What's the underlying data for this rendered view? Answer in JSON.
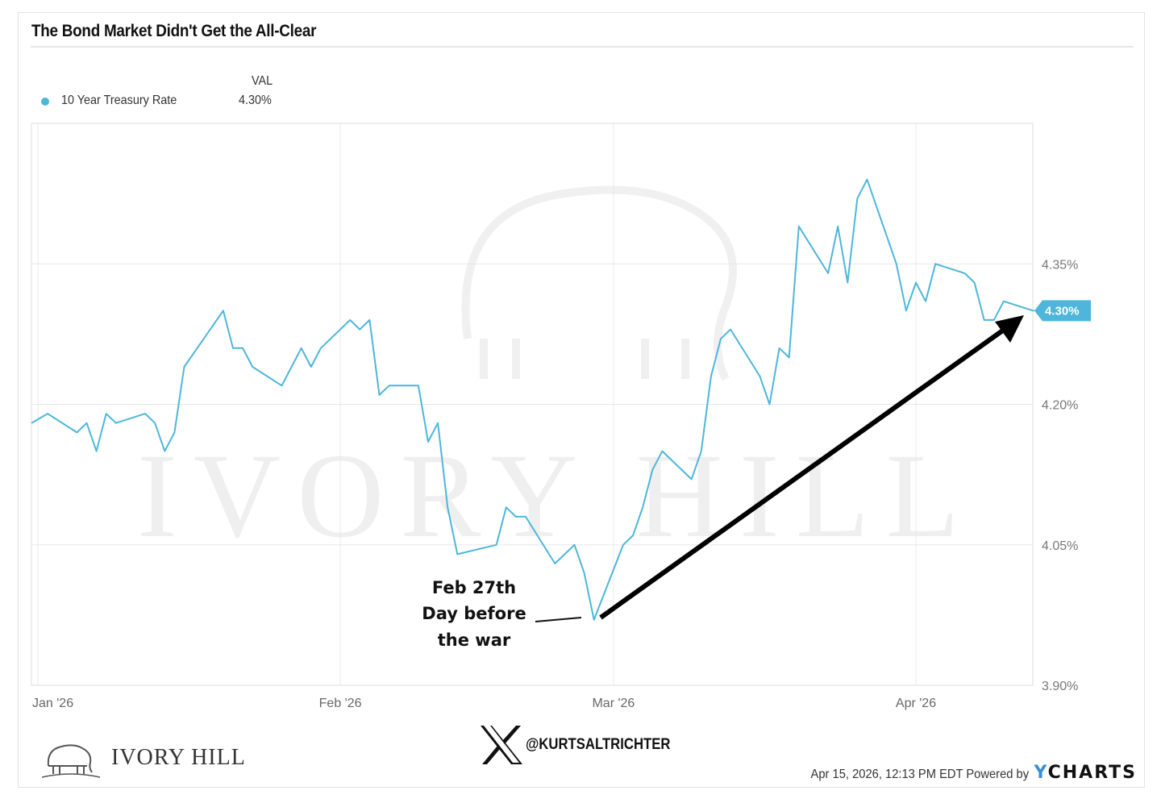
{
  "header": {
    "title": "The Bond Market Didn't Get the All-Clear"
  },
  "legend": {
    "column_header": "VAL",
    "items": [
      {
        "name": "10 Year Treasury Rate",
        "value": "4.30%",
        "color": "#4db6da"
      }
    ]
  },
  "chart_data": {
    "type": "line",
    "title": "The Bond Market Didn't Get the All-Clear",
    "xlabel": "",
    "ylabel": "",
    "ylim": [
      3.9,
      4.5
    ],
    "y_ticks": [
      "3.90%",
      "4.05%",
      "4.20%",
      "4.35%"
    ],
    "y_tick_values": [
      3.9,
      4.05,
      4.2,
      4.35
    ],
    "x_ticks": [
      "Jan '26",
      "Feb '26",
      "Mar '26",
      "Apr '26"
    ],
    "x_tick_dates": [
      "2026-01-01",
      "2026-02-01",
      "2026-03-01",
      "2026-04-01"
    ],
    "grid": true,
    "legend_position": "top-left",
    "last_value_label": "4.30%",
    "series": [
      {
        "name": "10 Year Treasury Rate",
        "color": "#4db6da",
        "x": [
          "2025-12-31",
          "2026-01-02",
          "2026-01-05",
          "2026-01-06",
          "2026-01-07",
          "2026-01-08",
          "2026-01-09",
          "2026-01-12",
          "2026-01-13",
          "2026-01-14",
          "2026-01-15",
          "2026-01-16",
          "2026-01-20",
          "2026-01-21",
          "2026-01-22",
          "2026-01-23",
          "2026-01-26",
          "2026-01-27",
          "2026-01-28",
          "2026-01-29",
          "2026-01-30",
          "2026-02-02",
          "2026-02-03",
          "2026-02-04",
          "2026-02-05",
          "2026-02-06",
          "2026-02-09",
          "2026-02-10",
          "2026-02-11",
          "2026-02-12",
          "2026-02-13",
          "2026-02-17",
          "2026-02-18",
          "2026-02-19",
          "2026-02-20",
          "2026-02-23",
          "2026-02-24",
          "2026-02-25",
          "2026-02-26",
          "2026-02-27",
          "2026-03-02",
          "2026-03-03",
          "2026-03-04",
          "2026-03-05",
          "2026-03-06",
          "2026-03-09",
          "2026-03-10",
          "2026-03-11",
          "2026-03-12",
          "2026-03-13",
          "2026-03-16",
          "2026-03-17",
          "2026-03-18",
          "2026-03-19",
          "2026-03-20",
          "2026-03-23",
          "2026-03-24",
          "2026-03-25",
          "2026-03-26",
          "2026-03-27",
          "2026-03-30",
          "2026-03-31",
          "2026-04-01",
          "2026-04-02",
          "2026-04-03",
          "2026-04-06",
          "2026-04-07",
          "2026-04-08",
          "2026-04-09",
          "2026-04-10",
          "2026-04-13"
        ],
        "values": [
          4.18,
          4.19,
          4.17,
          4.18,
          4.15,
          4.19,
          4.18,
          4.19,
          4.18,
          4.15,
          4.17,
          4.24,
          4.3,
          4.26,
          4.26,
          4.24,
          4.22,
          4.24,
          4.26,
          4.24,
          4.26,
          4.29,
          4.28,
          4.29,
          4.21,
          4.22,
          4.22,
          4.16,
          4.18,
          4.09,
          4.04,
          4.05,
          4.09,
          4.08,
          4.08,
          4.03,
          4.04,
          4.05,
          4.02,
          3.97,
          4.05,
          4.06,
          4.09,
          4.13,
          4.15,
          4.12,
          4.15,
          4.23,
          4.27,
          4.28,
          4.23,
          4.2,
          4.26,
          4.25,
          4.39,
          4.34,
          4.39,
          4.33,
          4.42,
          4.44,
          4.35,
          4.3,
          4.33,
          4.31,
          4.35,
          4.34,
          4.33,
          4.29,
          4.29,
          4.31,
          4.3
        ]
      }
    ],
    "annotations": [
      {
        "lines": [
          "Feb 27th",
          "Day before",
          "the war"
        ],
        "date": "2026-02-27"
      }
    ]
  },
  "watermark": {
    "text": "IVORY HILL"
  },
  "footer": {
    "brand": "IVORY HILL",
    "social_icon": "x-logo-icon",
    "handle": "@KURTSALTRICHTER",
    "timestamp": "Apr 15, 2026, 12:13 PM EDT Powered by",
    "powered_by": "YCHARTS"
  }
}
